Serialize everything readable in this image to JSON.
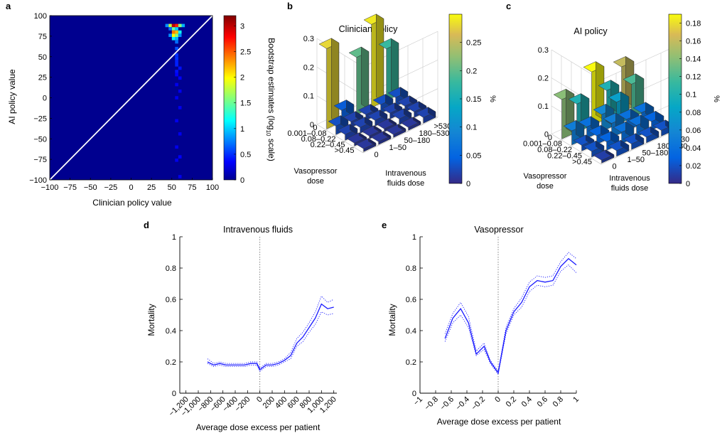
{
  "panels": {
    "a": {
      "letter": "a"
    },
    "b": {
      "letter": "b",
      "title": "Clinician policy"
    },
    "c": {
      "letter": "c",
      "title": "AI policy"
    },
    "d": {
      "letter": "d",
      "title": "Intravenous fluids"
    },
    "e": {
      "letter": "e",
      "title": "Vasopressor"
    }
  },
  "chart_data": [
    {
      "panel": "a",
      "type": "heatmap",
      "xlabel": "Clinician policy value",
      "ylabel": "AI policy value",
      "xlim": [
        -100,
        100
      ],
      "ylim": [
        -100,
        100
      ],
      "xticks": [
        "−100",
        "−75",
        "−50",
        "−25",
        "0",
        "25",
        "50",
        "75",
        "100"
      ],
      "yticks": [
        "−100",
        "−75",
        "−50",
        "−25",
        "0",
        "25",
        "50",
        "75",
        "100"
      ],
      "colorbar": {
        "label_pre": "Bootstrap estimates (log",
        "label_sub": "10",
        "label_post": " scale)",
        "range": [
          0,
          3.2
        ],
        "ticks": [
          "0",
          "0.5",
          "1",
          "1.5",
          "2",
          "2.5",
          "3"
        ]
      },
      "background_color": "#00008f",
      "diagonal_line": "y = x",
      "cells": [
        {
          "x": 48,
          "y": 88,
          "v": 1.8
        },
        {
          "x": 52,
          "y": 88,
          "v": 3.0
        },
        {
          "x": 56,
          "y": 88,
          "v": 2.7
        },
        {
          "x": 60,
          "y": 88,
          "v": 1.6
        },
        {
          "x": 64,
          "y": 88,
          "v": 0.9
        },
        {
          "x": 44,
          "y": 88,
          "v": 0.8
        },
        {
          "x": 52,
          "y": 84,
          "v": 1.5
        },
        {
          "x": 56,
          "y": 84,
          "v": 1.0
        },
        {
          "x": 48,
          "y": 84,
          "v": 0.7
        },
        {
          "x": 52,
          "y": 80,
          "v": 2.4
        },
        {
          "x": 56,
          "y": 80,
          "v": 2.2
        },
        {
          "x": 60,
          "y": 80,
          "v": 1.2
        },
        {
          "x": 52,
          "y": 76,
          "v": 2.0
        },
        {
          "x": 56,
          "y": 76,
          "v": 1.6
        },
        {
          "x": 48,
          "y": 76,
          "v": 0.8
        },
        {
          "x": 60,
          "y": 76,
          "v": 0.8
        },
        {
          "x": 52,
          "y": 72,
          "v": 1.1
        },
        {
          "x": 56,
          "y": 72,
          "v": 0.9
        },
        {
          "x": 56,
          "y": 68,
          "v": 0.7
        },
        {
          "x": 56,
          "y": 60,
          "v": 0.6
        },
        {
          "x": 56,
          "y": 52,
          "v": 0.5
        },
        {
          "x": 56,
          "y": 48,
          "v": 0.5
        },
        {
          "x": 56,
          "y": 44,
          "v": 0.45
        },
        {
          "x": 56,
          "y": 40,
          "v": 0.45
        },
        {
          "x": 60,
          "y": 36,
          "v": 0.4
        },
        {
          "x": 56,
          "y": 32,
          "v": 0.4
        },
        {
          "x": 56,
          "y": 28,
          "v": 0.35
        },
        {
          "x": 60,
          "y": 24,
          "v": 0.35
        },
        {
          "x": 56,
          "y": 16,
          "v": 0.3
        },
        {
          "x": 60,
          "y": 8,
          "v": 0.3
        },
        {
          "x": 56,
          "y": 0,
          "v": 0.3
        },
        {
          "x": 60,
          "y": -12,
          "v": 0.3
        },
        {
          "x": 56,
          "y": -28,
          "v": 0.3
        },
        {
          "x": 60,
          "y": -44,
          "v": 0.3
        },
        {
          "x": 56,
          "y": -60,
          "v": 0.3
        },
        {
          "x": 60,
          "y": -72,
          "v": 0.35
        },
        {
          "x": 56,
          "y": -76,
          "v": 0.3
        },
        {
          "x": 60,
          "y": -96,
          "v": 0.3
        }
      ]
    },
    {
      "panel": "b",
      "type": "bar3d",
      "title": "Clinician policy",
      "row_label": [
        "Vasopressor",
        "dose"
      ],
      "col_label": [
        "Intravenous",
        "fluids dose"
      ],
      "row_categories": [
        "0",
        "0.001–0.08",
        "0.08–0.22",
        "0.22–0.45",
        ">0.45"
      ],
      "col_categories": [
        "0",
        "1–50",
        "50–180",
        "180–530",
        ">530"
      ],
      "zticks": [
        "0",
        "0.1",
        "0.2",
        "0.3"
      ],
      "zlim": [
        0,
        0.3
      ],
      "colorbar": {
        "label": "%",
        "range": [
          0,
          0.3
        ],
        "ticks": [
          "0",
          "0.05",
          "0.1",
          "0.15",
          "0.2",
          "0.25"
        ]
      },
      "values": [
        [
          0.28,
          0.04,
          0.2,
          0.29,
          0.18
        ],
        [
          0.03,
          0.02,
          0.02,
          0.03,
          0.03
        ],
        [
          0.02,
          0.02,
          0.02,
          0.02,
          0.02
        ],
        [
          0.01,
          0.01,
          0.01,
          0.02,
          0.02
        ],
        [
          0.01,
          0.01,
          0.01,
          0.01,
          0.02
        ]
      ]
    },
    {
      "panel": "c",
      "type": "bar3d",
      "title": "AI policy",
      "row_label": [
        "Vasopressor",
        "dose"
      ],
      "col_label": [
        "Intravenous",
        "fluids dose"
      ],
      "row_categories": [
        "0",
        "0.001–0.08",
        "0.08–0.22",
        "0.22–0.45",
        ">0.45"
      ],
      "col_categories": [
        "0",
        "1–50",
        "50–180",
        "180–530",
        ">530"
      ],
      "zticks": [
        "0",
        "0.1",
        "0.2",
        "0.3"
      ],
      "zlim": [
        0,
        0.3
      ],
      "colorbar": {
        "label": "%",
        "range": [
          0,
          0.19
        ],
        "ticks": [
          "0",
          "0.02",
          "0.04",
          "0.06",
          "0.08",
          "0.1",
          "0.12",
          "0.14",
          "0.16",
          "0.18"
        ]
      },
      "values": [
        [
          0.14,
          0.1,
          0.19,
          0.1,
          0.16
        ],
        [
          0.05,
          0.04,
          0.06,
          0.08,
          0.12
        ],
        [
          0.02,
          0.03,
          0.05,
          0.04,
          0.04
        ],
        [
          0.02,
          0.03,
          0.04,
          0.04,
          0.03
        ],
        [
          0.01,
          0.02,
          0.02,
          0.02,
          0.02
        ]
      ]
    },
    {
      "panel": "d",
      "type": "line",
      "title": "Intravenous fluids",
      "xlabel": "Average dose excess per patient",
      "ylabel": "Mortality",
      "xlim": [
        -1300,
        1250
      ],
      "ylim": [
        0,
        1
      ],
      "xticks": [
        {
          "v": -1200,
          "label": "−1,200"
        },
        {
          "v": -1000,
          "label": "−1,000"
        },
        {
          "v": -800,
          "label": "−800"
        },
        {
          "v": -600,
          "label": "−600"
        },
        {
          "v": -400,
          "label": "−400"
        },
        {
          "v": -200,
          "label": "−200"
        },
        {
          "v": 0,
          "label": "0"
        },
        {
          "v": 200,
          "label": "200"
        },
        {
          "v": 400,
          "label": "400"
        },
        {
          "v": 600,
          "label": "600"
        },
        {
          "v": 800,
          "label": "800"
        },
        {
          "v": 1000,
          "label": "1,000"
        },
        {
          "v": 1200,
          "label": "1,200"
        }
      ],
      "yticks": [
        {
          "v": 0,
          "label": "0"
        },
        {
          "v": 0.2,
          "label": "0.2"
        },
        {
          "v": 0.4,
          "label": "0.4"
        },
        {
          "v": 0.6,
          "label": "0.6"
        },
        {
          "v": 0.8,
          "label": "0.8"
        },
        {
          "v": 1,
          "label": "1"
        }
      ],
      "line_color": "#1a1aff",
      "x": [
        -850,
        -750,
        -650,
        -550,
        -450,
        -350,
        -250,
        -150,
        -50,
        0,
        100,
        200,
        300,
        400,
        500,
        600,
        700,
        800,
        900,
        1000,
        1100,
        1200
      ],
      "y": [
        0.2,
        0.18,
        0.19,
        0.18,
        0.18,
        0.18,
        0.18,
        0.19,
        0.19,
        0.15,
        0.18,
        0.18,
        0.19,
        0.21,
        0.24,
        0.32,
        0.36,
        0.42,
        0.48,
        0.57,
        0.54,
        0.55
      ],
      "lower": [
        0.19,
        0.17,
        0.18,
        0.17,
        0.17,
        0.17,
        0.17,
        0.18,
        0.18,
        0.14,
        0.17,
        0.17,
        0.18,
        0.2,
        0.22,
        0.3,
        0.33,
        0.39,
        0.44,
        0.52,
        0.5,
        0.51
      ],
      "upper": [
        0.22,
        0.19,
        0.2,
        0.19,
        0.19,
        0.19,
        0.19,
        0.2,
        0.2,
        0.16,
        0.19,
        0.19,
        0.2,
        0.22,
        0.26,
        0.35,
        0.39,
        0.45,
        0.52,
        0.62,
        0.58,
        0.6
      ]
    },
    {
      "panel": "e",
      "type": "line",
      "title": "Vasopressor",
      "xlabel": "Average dose excess per patient",
      "ylabel": "Mortality",
      "xlim": [
        -1,
        1
      ],
      "ylim": [
        0,
        1
      ],
      "xticks": [
        {
          "v": -1,
          "label": "−1"
        },
        {
          "v": -0.8,
          "label": "−0.8"
        },
        {
          "v": -0.6,
          "label": "−0.6"
        },
        {
          "v": -0.4,
          "label": "−0.4"
        },
        {
          "v": -0.2,
          "label": "−0.2"
        },
        {
          "v": 0,
          "label": "0"
        },
        {
          "v": 0.2,
          "label": "0.2"
        },
        {
          "v": 0.4,
          "label": "0.4"
        },
        {
          "v": 0.6,
          "label": "0.6"
        },
        {
          "v": 0.8,
          "label": "0.8"
        },
        {
          "v": 1,
          "label": "1"
        }
      ],
      "yticks": [
        {
          "v": 0,
          "label": "0"
        },
        {
          "v": 0.2,
          "label": "0.2"
        },
        {
          "v": 0.4,
          "label": "0.4"
        },
        {
          "v": 0.6,
          "label": "0.6"
        },
        {
          "v": 0.8,
          "label": "0.8"
        },
        {
          "v": 1,
          "label": "1"
        }
      ],
      "line_color": "#1a1aff",
      "x": [
        -0.68,
        -0.58,
        -0.48,
        -0.38,
        -0.28,
        -0.18,
        -0.1,
        0,
        0.1,
        0.2,
        0.3,
        0.4,
        0.5,
        0.6,
        0.7,
        0.8,
        0.9,
        1.0
      ],
      "y": [
        0.35,
        0.48,
        0.54,
        0.45,
        0.25,
        0.3,
        0.2,
        0.13,
        0.4,
        0.52,
        0.58,
        0.68,
        0.72,
        0.71,
        0.72,
        0.81,
        0.86,
        0.82
      ],
      "lower": [
        0.33,
        0.45,
        0.5,
        0.42,
        0.24,
        0.28,
        0.19,
        0.12,
        0.38,
        0.5,
        0.55,
        0.65,
        0.69,
        0.68,
        0.69,
        0.78,
        0.82,
        0.77
      ],
      "upper": [
        0.38,
        0.51,
        0.58,
        0.49,
        0.27,
        0.32,
        0.21,
        0.14,
        0.42,
        0.54,
        0.61,
        0.71,
        0.75,
        0.74,
        0.75,
        0.84,
        0.9,
        0.86
      ]
    }
  ]
}
